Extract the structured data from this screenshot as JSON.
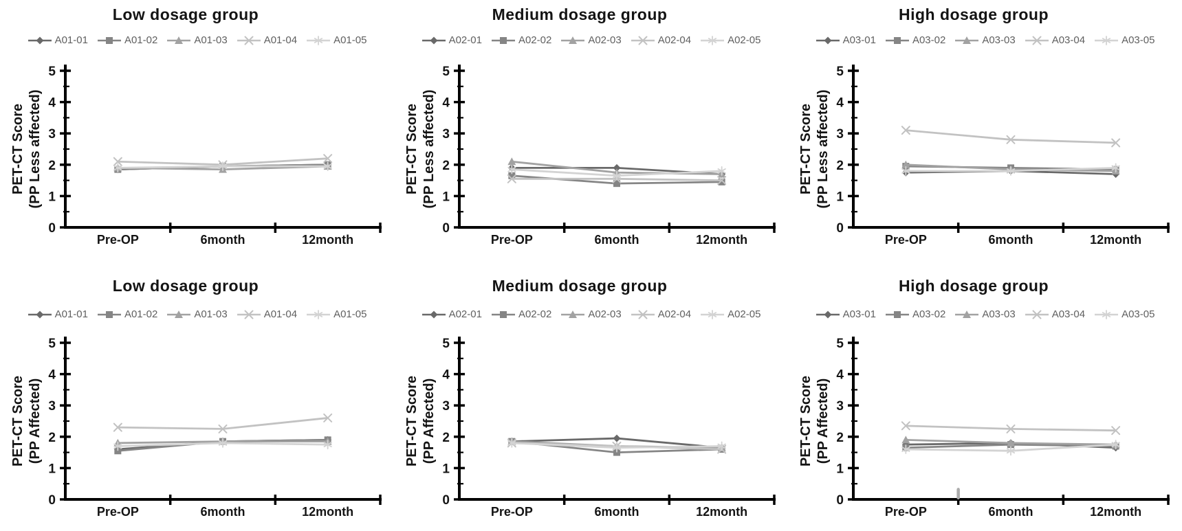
{
  "figure": {
    "description": "Six-panel line chart figure of PET-CT scores by dosage group",
    "background_color": "#ffffff",
    "axis_color": "#000000",
    "title_color": "#141414",
    "tick_label_color": "#141414",
    "legend_text_color": "#5f5f5f"
  },
  "series_styles": [
    {
      "marker": "diamond",
      "color": "#696969"
    },
    {
      "marker": "square",
      "color": "#858585"
    },
    {
      "marker": "triangle",
      "color": "#a2a2a2"
    },
    {
      "marker": "x",
      "color": "#c2c2c2"
    },
    {
      "marker": "asterisk",
      "color": "#d3d3d3"
    }
  ],
  "chart_data": [
    {
      "type": "line",
      "title": "Low dosage group",
      "ylabel_line1": "PET-CT Score",
      "ylabel_line2": "(PP Less affected)",
      "categories": [
        "Pre-OP",
        "6month",
        "12month"
      ],
      "ylim": [
        0,
        5
      ],
      "y_ticks": [
        0,
        1,
        2,
        3,
        4,
        5
      ],
      "legend_position": "top",
      "grid": false,
      "series": [
        {
          "name": "A01-01",
          "values": [
            1.85,
            1.95,
            2.0
          ]
        },
        {
          "name": "A01-02",
          "values": [
            1.85,
            1.95,
            2.0
          ]
        },
        {
          "name": "A01-03",
          "values": [
            1.9,
            1.85,
            1.95
          ]
        },
        {
          "name": "A01-04",
          "values": [
            2.1,
            2.0,
            2.2
          ]
        },
        {
          "name": "A01-05",
          "values": [
            1.9,
            1.95,
            1.95
          ]
        }
      ]
    },
    {
      "type": "line",
      "title": "Medium dosage group",
      "ylabel_line1": "PET-CT Score",
      "ylabel_line2": "(PP Less affected)",
      "categories": [
        "Pre-OP",
        "6month",
        "12month"
      ],
      "ylim": [
        0,
        5
      ],
      "y_ticks": [
        0,
        1,
        2,
        3,
        4,
        5
      ],
      "legend_position": "top",
      "grid": false,
      "series": [
        {
          "name": "A02-01",
          "values": [
            1.9,
            1.9,
            1.7
          ]
        },
        {
          "name": "A02-02",
          "values": [
            1.65,
            1.4,
            1.45
          ]
        },
        {
          "name": "A02-03",
          "values": [
            2.1,
            1.75,
            1.7
          ]
        },
        {
          "name": "A02-04",
          "values": [
            1.55,
            1.55,
            1.5
          ]
        },
        {
          "name": "A02-05",
          "values": [
            1.85,
            1.65,
            1.8
          ]
        }
      ]
    },
    {
      "type": "line",
      "title": "High dosage group",
      "ylabel_line1": "PET-CT Score",
      "ylabel_line2": "(PP Less affected)",
      "categories": [
        "Pre-OP",
        "6month",
        "12month"
      ],
      "ylim": [
        0,
        5
      ],
      "y_ticks": [
        0,
        1,
        2,
        3,
        4,
        5
      ],
      "legend_position": "top",
      "grid": false,
      "series": [
        {
          "name": "A03-01",
          "values": [
            1.75,
            1.8,
            1.7
          ]
        },
        {
          "name": "A03-02",
          "values": [
            1.95,
            1.9,
            1.85
          ]
        },
        {
          "name": "A03-03",
          "values": [
            2.0,
            1.85,
            1.8
          ]
        },
        {
          "name": "A03-04",
          "values": [
            3.1,
            2.8,
            2.7
          ]
        },
        {
          "name": "A03-05",
          "values": [
            1.8,
            1.8,
            1.9
          ]
        }
      ]
    },
    {
      "type": "line",
      "title": "Low dosage group",
      "ylabel_line1": "PET-CT Score",
      "ylabel_line2": "(PP Affected)",
      "categories": [
        "Pre-OP",
        "6month",
        "12month"
      ],
      "ylim": [
        0,
        5
      ],
      "y_ticks": [
        0,
        1,
        2,
        3,
        4,
        5
      ],
      "legend_position": "top",
      "grid": false,
      "series": [
        {
          "name": "A01-01",
          "values": [
            1.6,
            1.85,
            1.9
          ]
        },
        {
          "name": "A01-02",
          "values": [
            1.55,
            1.85,
            1.9
          ]
        },
        {
          "name": "A01-03",
          "values": [
            1.8,
            1.85,
            1.85
          ]
        },
        {
          "name": "A01-04",
          "values": [
            2.3,
            2.25,
            2.6
          ]
        },
        {
          "name": "A01-05",
          "values": [
            1.7,
            1.8,
            1.75
          ]
        }
      ]
    },
    {
      "type": "line",
      "title": "Medium dosage group",
      "ylabel_line1": "PET-CT Score",
      "ylabel_line2": "(PP Affected)",
      "categories": [
        "Pre-OP",
        "6month",
        "12month"
      ],
      "ylim": [
        0,
        5
      ],
      "y_ticks": [
        0,
        1,
        2,
        3,
        4,
        5
      ],
      "legend_position": "top",
      "grid": false,
      "series": [
        {
          "name": "A02-01",
          "values": [
            1.85,
            1.95,
            1.65
          ]
        },
        {
          "name": "A02-02",
          "values": [
            1.85,
            1.5,
            1.6
          ]
        },
        {
          "name": "A02-03",
          "values": [
            1.85,
            1.7,
            1.65
          ]
        },
        {
          "name": "A02-04",
          "values": [
            1.8,
            1.7,
            1.6
          ]
        },
        {
          "name": "A02-05",
          "values": [
            1.8,
            1.65,
            1.7
          ]
        }
      ]
    },
    {
      "type": "line",
      "title": "High dosage group",
      "ylabel_line1": "PET-CT Score",
      "ylabel_line2": "(PP Affected)",
      "categories": [
        "Pre-OP",
        "6month",
        "12month"
      ],
      "ylim": [
        0,
        5
      ],
      "y_ticks": [
        0,
        1,
        2,
        3,
        4,
        5
      ],
      "legend_position": "top",
      "grid": false,
      "stray_mark": {
        "approx_value": 0.2,
        "at_boundary_after": "Pre-OP",
        "color": "#ababab"
      },
      "series": [
        {
          "name": "A03-01",
          "values": [
            1.75,
            1.8,
            1.65
          ]
        },
        {
          "name": "A03-02",
          "values": [
            1.65,
            1.75,
            1.7
          ]
        },
        {
          "name": "A03-03",
          "values": [
            1.9,
            1.8,
            1.75
          ]
        },
        {
          "name": "A03-04",
          "values": [
            2.35,
            2.25,
            2.2
          ]
        },
        {
          "name": "A03-05",
          "values": [
            1.6,
            1.55,
            1.75
          ]
        }
      ]
    }
  ]
}
